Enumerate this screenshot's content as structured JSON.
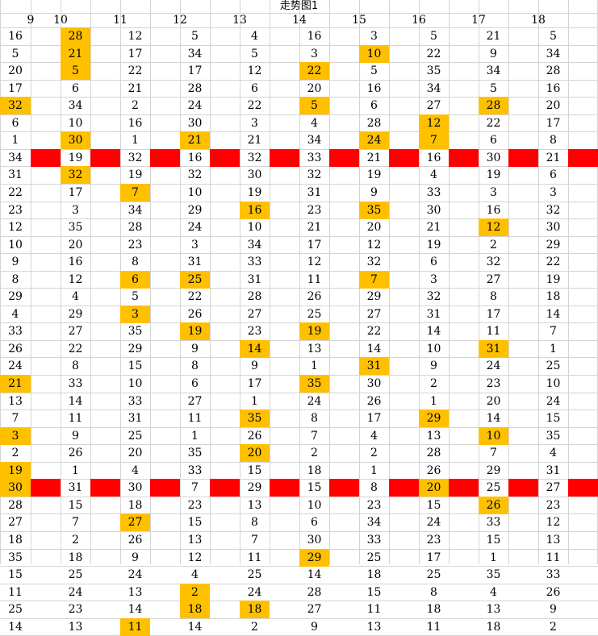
{
  "title": "走势图1",
  "columns": [
    "9",
    "10",
    "11",
    "12",
    "13",
    "14",
    "15",
    "16",
    "17",
    "18"
  ],
  "highlight_color": "#FFC000",
  "divider_color": "#FF0000",
  "rows": [
    [
      "16",
      "28",
      "12",
      "5",
      "4",
      "16",
      "3",
      "5",
      "21",
      "5"
    ],
    [
      "5",
      "21",
      "17",
      "34",
      "5",
      "3",
      "10",
      "22",
      "9",
      "34"
    ],
    [
      "20",
      "5",
      "22",
      "17",
      "12",
      "22",
      "5",
      "35",
      "34",
      "28"
    ],
    [
      "17",
      "6",
      "21",
      "28",
      "6",
      "20",
      "16",
      "34",
      "5",
      "16"
    ],
    [
      "32",
      "34",
      "2",
      "24",
      "22",
      "5",
      "6",
      "27",
      "28",
      "20"
    ],
    [
      "6",
      "10",
      "16",
      "30",
      "3",
      "4",
      "28",
      "12",
      "22",
      "17"
    ],
    [
      "1",
      "30",
      "1",
      "21",
      "21",
      "34",
      "24",
      "7",
      "6",
      "8"
    ],
    [
      "34",
      "19",
      "32",
      "16",
      "32",
      "33",
      "21",
      "16",
      "30",
      "21"
    ],
    [
      "31",
      "32",
      "19",
      "32",
      "30",
      "32",
      "19",
      "4",
      "19",
      "6"
    ],
    [
      "22",
      "17",
      "7",
      "10",
      "19",
      "31",
      "9",
      "33",
      "3",
      "3"
    ],
    [
      "23",
      "3",
      "34",
      "29",
      "16",
      "23",
      "35",
      "30",
      "16",
      "32"
    ],
    [
      "12",
      "35",
      "28",
      "24",
      "10",
      "21",
      "20",
      "21",
      "12",
      "30"
    ],
    [
      "10",
      "20",
      "23",
      "3",
      "34",
      "17",
      "12",
      "19",
      "2",
      "29"
    ],
    [
      "9",
      "16",
      "8",
      "31",
      "33",
      "12",
      "32",
      "6",
      "32",
      "22"
    ],
    [
      "8",
      "12",
      "6",
      "25",
      "31",
      "11",
      "7",
      "3",
      "27",
      "19"
    ],
    [
      "29",
      "4",
      "5",
      "22",
      "28",
      "26",
      "29",
      "32",
      "8",
      "18"
    ],
    [
      "4",
      "29",
      "3",
      "26",
      "27",
      "25",
      "27",
      "31",
      "17",
      "14"
    ],
    [
      "33",
      "27",
      "35",
      "19",
      "23",
      "19",
      "22",
      "14",
      "11",
      "7"
    ],
    [
      "26",
      "22",
      "29",
      "9",
      "14",
      "13",
      "14",
      "10",
      "31",
      "1"
    ],
    [
      "24",
      "8",
      "15",
      "8",
      "9",
      "1",
      "31",
      "9",
      "24",
      "25"
    ],
    [
      "21",
      "33",
      "10",
      "6",
      "17",
      "35",
      "30",
      "2",
      "23",
      "10"
    ],
    [
      "13",
      "14",
      "33",
      "27",
      "1",
      "24",
      "26",
      "1",
      "20",
      "24"
    ],
    [
      "7",
      "11",
      "31",
      "11",
      "35",
      "8",
      "17",
      "29",
      "14",
      "15"
    ],
    [
      "3",
      "9",
      "25",
      "1",
      "26",
      "7",
      "4",
      "13",
      "10",
      "35"
    ],
    [
      "2",
      "26",
      "20",
      "35",
      "20",
      "2",
      "2",
      "28",
      "7",
      "4"
    ],
    [
      "19",
      "1",
      "4",
      "33",
      "15",
      "18",
      "1",
      "26",
      "29",
      "31"
    ],
    [
      "30",
      "31",
      "30",
      "7",
      "29",
      "15",
      "8",
      "20",
      "25",
      "27"
    ],
    [
      "28",
      "15",
      "18",
      "23",
      "13",
      "10",
      "23",
      "15",
      "26",
      "23"
    ],
    [
      "27",
      "7",
      "27",
      "15",
      "8",
      "6",
      "34",
      "24",
      "33",
      "12"
    ],
    [
      "18",
      "2",
      "26",
      "13",
      "7",
      "30",
      "33",
      "23",
      "15",
      "13"
    ],
    [
      "35",
      "18",
      "9",
      "12",
      "11",
      "29",
      "25",
      "17",
      "1",
      "11"
    ],
    [
      "15",
      "25",
      "24",
      "4",
      "25",
      "14",
      "18",
      "25",
      "35",
      "33"
    ],
    [
      "11",
      "24",
      "13",
      "2",
      "24",
      "28",
      "15",
      "8",
      "4",
      "26"
    ],
    [
      "25",
      "23",
      "14",
      "18",
      "18",
      "27",
      "11",
      "18",
      "13",
      "9"
    ],
    [
      "14",
      "13",
      "11",
      "14",
      "2",
      "9",
      "13",
      "11",
      "18",
      "2"
    ]
  ],
  "highlights": [
    [
      1
    ],
    [
      1,
      6
    ],
    [
      1,
      5
    ],
    [],
    [
      0,
      5,
      8
    ],
    [
      7
    ],
    [
      1,
      3,
      6,
      7
    ],
    [],
    [
      1
    ],
    [
      2
    ],
    [
      4,
      6
    ],
    [
      8
    ],
    [],
    [],
    [
      2,
      3,
      6
    ],
    [],
    [
      2
    ],
    [
      3,
      5
    ],
    [
      4,
      8
    ],
    [
      6
    ],
    [
      0,
      5
    ],
    [],
    [
      4,
      7
    ],
    [
      0,
      8
    ],
    [
      4
    ],
    [
      0
    ],
    [
      0,
      7
    ],
    [
      8
    ],
    [
      2
    ],
    [],
    [
      5
    ],
    [],
    [
      3
    ],
    [
      3,
      4
    ],
    [
      2
    ]
  ],
  "divider_rows": [
    7,
    26
  ]
}
